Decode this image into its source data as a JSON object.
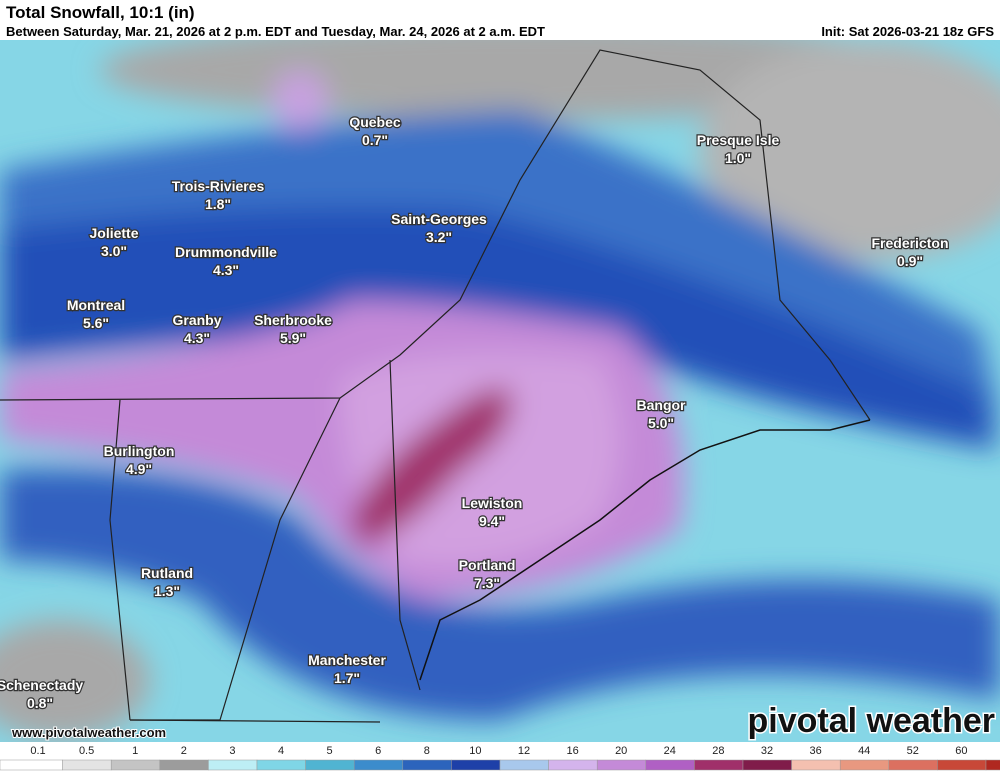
{
  "header": {
    "title": "Total Snowfall, 10:1 (in)",
    "subtitle": "Between Saturday, Mar. 21, 2026 at 2 p.m. EDT and Tuesday, Mar. 24, 2026 at 2 a.m. EDT",
    "init": "Init: Sat 2026-03-21 18z GFS"
  },
  "cities": [
    {
      "name": "Quebec",
      "label": "0.7\""
    },
    {
      "name": "Presque Isle",
      "label": "1.0\""
    },
    {
      "name": "Trois-Rivieres",
      "label": "1.8\""
    },
    {
      "name": "Saint-Georges",
      "label": "3.2\""
    },
    {
      "name": "Joliette",
      "label": "3.0\""
    },
    {
      "name": "Drummondville",
      "label": "4.3\""
    },
    {
      "name": "Fredericton",
      "label": "0.9\""
    },
    {
      "name": "Montreal",
      "label": "5.6\""
    },
    {
      "name": "Granby",
      "label": "4.3\""
    },
    {
      "name": "Sherbrooke",
      "label": "5.9\""
    },
    {
      "name": "Bangor",
      "label": "5.0\""
    },
    {
      "name": "Burlington",
      "label": "4.9\""
    },
    {
      "name": "Lewiston",
      "label": "9.4\""
    },
    {
      "name": "Portland",
      "label": "7.3\""
    },
    {
      "name": "Rutland",
      "label": "1.3\""
    },
    {
      "name": "Manchester",
      "label": "1.7\""
    },
    {
      "name": "Schenectady",
      "label": "0.8\""
    }
  ],
  "legend": {
    "ticks": [
      "0.1",
      "0.5",
      "1",
      "2",
      "3",
      "4",
      "5",
      "6",
      "8",
      "10",
      "12",
      "16",
      "20",
      "24",
      "28",
      "32",
      "36",
      "44",
      "52",
      "60"
    ]
  },
  "footer": {
    "url": "www.pivotalweather.com",
    "logo": "pivotal weather"
  }
}
